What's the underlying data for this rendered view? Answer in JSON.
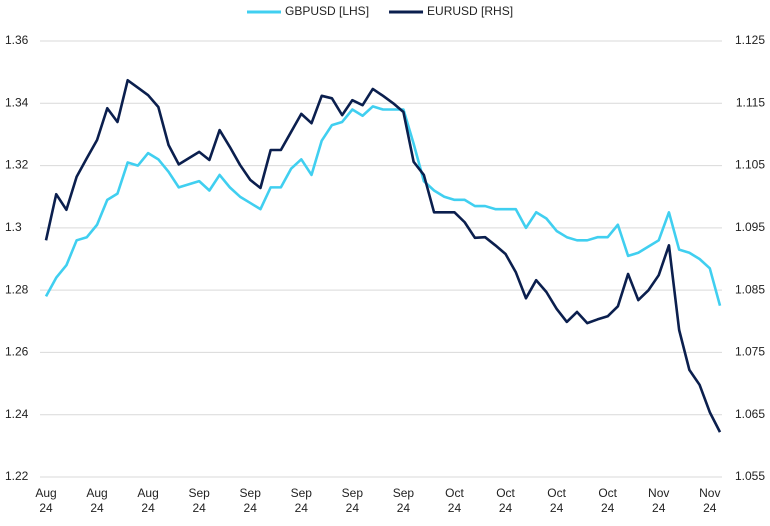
{
  "chart_data": {
    "type": "line",
    "categories": [
      "Aug 24",
      null,
      null,
      null,
      null,
      "Aug 24",
      null,
      null,
      null,
      null,
      "Aug 24",
      null,
      null,
      null,
      null,
      "Sep 24",
      null,
      null,
      null,
      null,
      "Sep 24",
      null,
      null,
      null,
      null,
      "Sep 24",
      null,
      null,
      null,
      null,
      "Sep 24",
      null,
      null,
      null,
      null,
      "Sep 24",
      null,
      null,
      null,
      null,
      "Oct 24",
      null,
      null,
      null,
      null,
      "Oct 24",
      null,
      null,
      null,
      null,
      "Oct 24",
      null,
      null,
      null,
      null,
      "Oct 24",
      null,
      null,
      null,
      null,
      "Nov 24",
      null,
      null,
      null,
      null,
      "Nov 24",
      null
    ],
    "series": [
      {
        "name": "GBPUSD [LHS]",
        "color": "#40cff0",
        "values": [
          1.278,
          1.284,
          1.288,
          1.296,
          1.297,
          1.301,
          1.309,
          1.311,
          1.321,
          1.32,
          1.324,
          1.322,
          1.318,
          1.313,
          1.314,
          1.315,
          1.312,
          1.317,
          1.313,
          1.31,
          1.308,
          1.306,
          1.313,
          1.313,
          1.319,
          1.322,
          1.317,
          1.328,
          1.333,
          1.334,
          1.338,
          1.336,
          1.339,
          1.338,
          1.338,
          1.338,
          1.327,
          1.315,
          1.312,
          1.31,
          1.309,
          1.309,
          1.307,
          1.307,
          1.306,
          1.306,
          1.306,
          1.3,
          1.305,
          1.303,
          1.299,
          1.297,
          1.296,
          1.296,
          1.297,
          1.297,
          1.301,
          1.291,
          1.292,
          1.294,
          1.296,
          1.305,
          1.293,
          1.292,
          1.29,
          1.287,
          1.275
        ]
      },
      {
        "name": "EURUSD [RHS]",
        "color": "#0b1f4e",
        "axis": "y2",
        "values": [
          1.093,
          1.1004,
          1.0979,
          1.1032,
          1.1062,
          1.1091,
          1.1142,
          1.112,
          1.1187,
          1.1175,
          1.1163,
          1.1144,
          1.1083,
          1.1052,
          1.1062,
          1.1072,
          1.1059,
          1.1107,
          1.108,
          1.1051,
          1.1027,
          1.1014,
          1.1075,
          1.1075,
          1.1104,
          1.1133,
          1.1118,
          1.1162,
          1.1158,
          1.1131,
          1.1155,
          1.1147,
          1.1173,
          1.1162,
          1.115,
          1.1136,
          1.1056,
          1.1035,
          1.0975,
          1.0975,
          1.0975,
          1.0959,
          1.0934,
          1.0935,
          1.0922,
          1.0908,
          1.0879,
          1.0837,
          1.0866,
          1.0847,
          1.082,
          1.0799,
          1.0815,
          1.0797,
          1.0803,
          1.0808,
          1.0824,
          1.0876,
          1.0834,
          1.085,
          1.0874,
          1.0922,
          1.0786,
          1.0722,
          1.0698,
          1.0654,
          1.0622
        ]
      }
    ],
    "ylim": [
      1.22,
      1.36
    ],
    "yticks": [
      1.22,
      1.24,
      1.26,
      1.28,
      1.3,
      1.32,
      1.34,
      1.36
    ],
    "y2lim": [
      1.055,
      1.125
    ],
    "y2ticks": [
      1.055,
      1.065,
      1.075,
      1.085,
      1.095,
      1.105,
      1.115,
      1.125
    ],
    "grid": true,
    "legend": "top"
  }
}
